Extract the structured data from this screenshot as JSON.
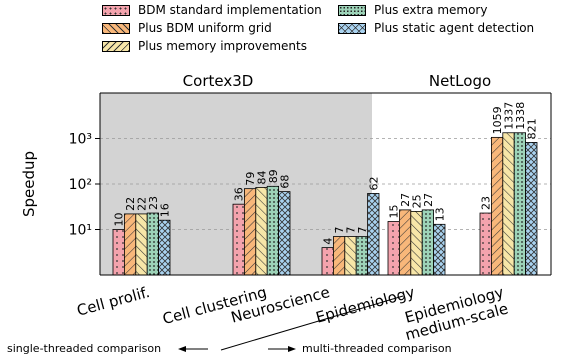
{
  "legend": [
    {
      "name": "BDM standard implementation",
      "pattern": "dots",
      "color": "#f4a3ad"
    },
    {
      "name": "Plus BDM uniform grid",
      "pattern": "diag",
      "color": "#f8b77a"
    },
    {
      "name": "Plus memory improvements",
      "pattern": "backdiag",
      "color": "#f7e6a8"
    },
    {
      "name": "Plus extra memory",
      "pattern": "densedots",
      "color": "#9dd3b8"
    },
    {
      "name": "Plus static agent detection",
      "pattern": "cross",
      "color": "#a9d2ef"
    }
  ],
  "chart_data": {
    "type": "bar",
    "ylabel": "Speedup",
    "yscale": "log",
    "ylim": [
      1,
      10000
    ],
    "yticks": [
      "10¹",
      "10²",
      "10³"
    ],
    "grid": true,
    "categories": [
      "Cell prolif.",
      "Cell clustering",
      "Neuroscience",
      "Epidemiology",
      "Epidemiology\nmedium-scale"
    ],
    "group_labels": [
      "Cortex3D",
      "NetLogo"
    ],
    "series": [
      {
        "name": "BDM standard implementation",
        "values": [
          10,
          36,
          4,
          15,
          23
        ]
      },
      {
        "name": "Plus BDM uniform grid",
        "values": [
          22,
          79,
          7,
          27,
          1059
        ]
      },
      {
        "name": "Plus memory improvements",
        "values": [
          22,
          84,
          7,
          25,
          1337
        ]
      },
      {
        "name": "Plus extra memory",
        "values": [
          23,
          89,
          7,
          27,
          1338
        ]
      },
      {
        "name": "Plus static agent detection",
        "values": [
          16,
          68,
          62,
          13,
          821
        ]
      }
    ],
    "bar_labels": [
      [
        "10",
        "36",
        "4",
        "15",
        "23"
      ],
      [
        "22",
        "79",
        "7",
        "27",
        "1059"
      ],
      [
        "22",
        "84",
        "7",
        "25",
        "1337"
      ],
      [
        "23",
        "89",
        "7",
        "27",
        "1338"
      ],
      [
        "16",
        "68",
        "62",
        "13",
        "821"
      ]
    ]
  },
  "notes": {
    "single": "single-threaded comparison",
    "multi": "multi-threaded comparison"
  }
}
